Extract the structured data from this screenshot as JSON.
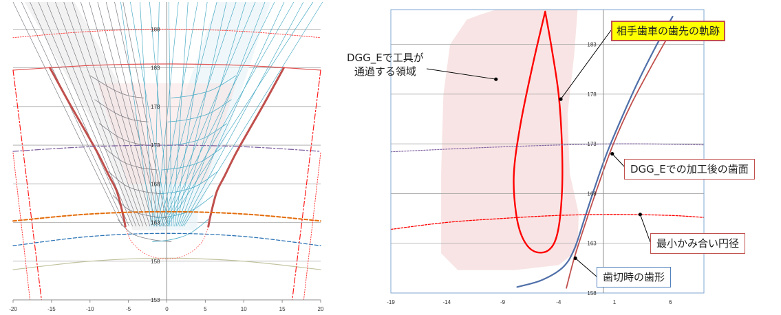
{
  "colors": {
    "grid": "#a6a6a6",
    "axis": "#8c8c8c",
    "tooth_flank": "#c0504d",
    "tool_envelope_gray": "#7f7f86",
    "tool_envelope_blue": "#4bacc6",
    "mating_tip_path": "#ff0000",
    "hob_profile": "#4f6fa8",
    "tool_region_fill": "#f8e4e4",
    "min_mesh_circle": "#ff0000",
    "tip_circle": "#8064a2",
    "orange_circle": "#e36c09",
    "blue_circle": "#2e75b6",
    "root_circle": "#c3c3a0",
    "highlight_yellow": "#ffff00",
    "callout_border_red": "#c0504d",
    "callout_border_blue": "#4f81bd"
  },
  "chart_data": [
    {
      "type": "line",
      "x_ticks": [
        "-20",
        "-15",
        "-10",
        "-5",
        "0",
        "5",
        "10",
        "15",
        "20"
      ],
      "y_ticks": [
        "153",
        "158",
        "163",
        "168",
        "173",
        "178",
        "183",
        "188"
      ],
      "xlim": [
        -20,
        20
      ],
      "ylim": [
        153,
        191.5
      ],
      "grid": true,
      "series": [
        {
          "kind": "tooth-flank-left",
          "x": [
            -15.2,
            -13,
            -11,
            -9,
            -7.5,
            -6.5,
            -5.7,
            -5.4
          ],
          "y": [
            183,
            179,
            175.5,
            172,
            169,
            167,
            164,
            162.5
          ]
        },
        {
          "kind": "tooth-flank-right",
          "x": [
            15.2,
            13,
            11,
            9,
            7.5,
            6.5,
            5.7,
            5.4
          ],
          "y": [
            183,
            179,
            175.5,
            172,
            169,
            167,
            164,
            162.5
          ]
        },
        {
          "kind": "tip-circle-red",
          "x": [
            -20,
            -10,
            0,
            10,
            20
          ],
          "y": [
            182.7,
            183.3,
            183.5,
            183.3,
            182.7
          ]
        },
        {
          "kind": "outer-circle-dotted",
          "x": [
            -20,
            -10,
            0,
            10,
            20
          ],
          "y": [
            186.9,
            187.7,
            188,
            187.7,
            186.9
          ]
        },
        {
          "kind": "circle-173-dashdot",
          "x": [
            -20,
            -10,
            0,
            10,
            20
          ],
          "y": [
            172.2,
            172.8,
            173,
            172.8,
            172.2
          ]
        },
        {
          "kind": "circle-orange-dashed",
          "x": [
            -20,
            -10,
            0,
            10,
            20
          ],
          "y": [
            163.2,
            164.1,
            164.4,
            164.1,
            163.2
          ]
        },
        {
          "kind": "circle-blue-dashed",
          "x": [
            -20,
            -10,
            0,
            10,
            20
          ],
          "y": [
            160,
            161.2,
            161.6,
            161.2,
            160
          ]
        },
        {
          "kind": "root-circle",
          "x": [
            -20,
            -10,
            0,
            10,
            20
          ],
          "y": [
            156.9,
            158,
            158.4,
            158,
            156.9
          ]
        },
        {
          "kind": "center-line-dashdot-left",
          "x": [
            -20,
            -16.3
          ],
          "y": [
            182.7,
            153
          ]
        },
        {
          "kind": "center-line-dashdot-right",
          "x": [
            20,
            16.3
          ],
          "y": [
            182.7,
            153
          ]
        },
        {
          "kind": "side-dotted-left",
          "x": [
            -20,
            -17.8
          ],
          "y": [
            172,
            153
          ]
        },
        {
          "kind": "side-dotted-right",
          "x": [
            20,
            17.8
          ],
          "y": [
            172,
            153
          ]
        }
      ]
    },
    {
      "type": "line",
      "x_ticks": [
        "-19",
        "-14",
        "-9",
        "-4",
        "1",
        "6"
      ],
      "y_ticks": [
        "158",
        "163",
        "168",
        "173",
        "178",
        "183"
      ],
      "xlim": [
        -19,
        9
      ],
      "ylim": [
        158,
        186.5
      ],
      "grid": true,
      "series": [
        {
          "kind": "mating-tip-trajectory",
          "x": [
            -5.2,
            -6.3,
            -7.4,
            -8,
            -7.8,
            -7.2,
            -6.2,
            -4.9,
            -4.1,
            -3.7,
            -3.7,
            -4.0,
            -4.6,
            -5.2
          ],
          "y": [
            186.3,
            181,
            175,
            170,
            166,
            163.5,
            162.2,
            162.3,
            164,
            168,
            173,
            178,
            182.5,
            186.3
          ]
        },
        {
          "kind": "dgg-e-tooth-surface",
          "x": [
            -3.3,
            -2.6,
            -1.6,
            -0.4,
            0.9,
            2.5,
            4.4,
            6.3
          ],
          "y": [
            158.5,
            161.5,
            165,
            169,
            173,
            177,
            181,
            184.8
          ]
        },
        {
          "kind": "hobbed-profile",
          "x": [
            -7.7,
            -5.5,
            -3.6,
            -2.6,
            -1.7,
            -0.8,
            0.3,
            1.6,
            3.0,
            4.7,
            6.2
          ],
          "y": [
            158.6,
            159.3,
            160.6,
            162.4,
            165.4,
            168.5,
            172.0,
            175.5,
            179.0,
            182.8,
            185.8
          ]
        },
        {
          "kind": "min-mesh-diameter",
          "x": [
            -19,
            -14,
            -9,
            -4,
            1,
            6,
            9
          ],
          "y": [
            164.4,
            165.1,
            165.5,
            165.8,
            165.9,
            165.8,
            165.6
          ]
        },
        {
          "kind": "circle-173-dotted",
          "x": [
            -19,
            -9,
            1,
            9
          ],
          "y": [
            172.2,
            172.7,
            173,
            172.9
          ]
        }
      ],
      "annotations": [
        {
          "id": "mating",
          "text": "相手歯車の歯先の軌跡"
        },
        {
          "id": "tool_region",
          "text_line1": "DGG_Eで工具が",
          "text_line2": "通過する領域"
        },
        {
          "id": "surface",
          "text": "DGG_Eでの加工後の歯面"
        },
        {
          "id": "min_mesh",
          "text": "最小かみ合い円径"
        },
        {
          "id": "hob",
          "text": "歯切時の歯形"
        }
      ]
    }
  ]
}
